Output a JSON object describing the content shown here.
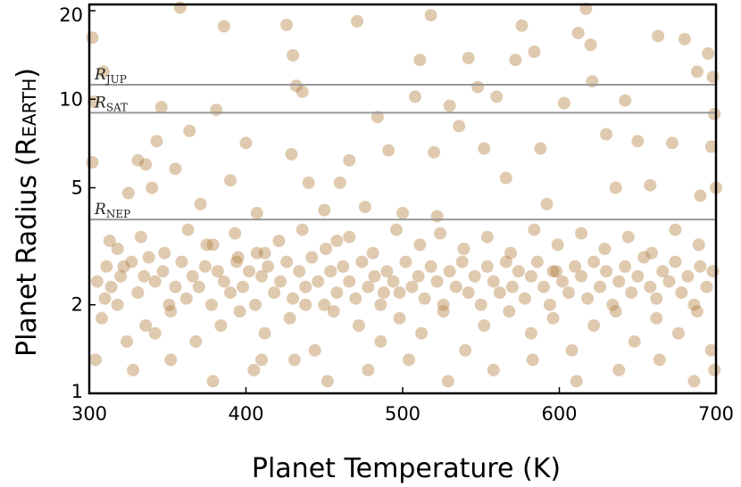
{
  "chart_data": {
    "type": "scatter",
    "xlabel": "Planet Temperature (K)",
    "ylabel": "Planet Radius (R",
    "ylabel_sub": "EARTH",
    "ylabel_end": ")",
    "xlim": [
      300,
      700
    ],
    "ylim": [
      1,
      21
    ],
    "yscale": "log",
    "x_ticks": [
      "300",
      "400",
      "500",
      "600",
      "700"
    ],
    "y_ticks": [
      "1",
      "2",
      "5",
      "10",
      "20"
    ],
    "grid": false,
    "marker_color": "#b07a3a",
    "marker_opacity": 0.4,
    "reference_lines": [
      {
        "label": "R",
        "sub": "JUP",
        "value": 11.2
      },
      {
        "label": "R",
        "sub": "SAT",
        "value": 9.0
      },
      {
        "label": "R",
        "sub": "NEP",
        "value": 3.9
      }
    ],
    "points": [
      [
        302,
        16.2
      ],
      [
        309,
        12.4
      ],
      [
        303,
        9.8
      ],
      [
        302,
        6.1
      ],
      [
        313,
        3.3
      ],
      [
        311,
        2.7
      ],
      [
        304,
        1.3
      ],
      [
        310,
        2.1
      ],
      [
        325,
        4.8
      ],
      [
        331,
        6.2
      ],
      [
        336,
        6.0
      ],
      [
        320,
        2.5
      ],
      [
        343,
        7.2
      ],
      [
        346,
        9.4
      ],
      [
        340,
        5.0
      ],
      [
        355,
        5.8
      ],
      [
        342,
        1.6
      ],
      [
        358,
        20.5
      ],
      [
        364,
        7.8
      ],
      [
        371,
        4.4
      ],
      [
        375,
        3.2
      ],
      [
        381,
        9.2
      ],
      [
        386,
        17.7
      ],
      [
        390,
        5.3
      ],
      [
        395,
        2.9
      ],
      [
        400,
        7.1
      ],
      [
        407,
        4.1
      ],
      [
        410,
        1.3
      ],
      [
        412,
        3.0
      ],
      [
        426,
        17.9
      ],
      [
        430,
        14.1
      ],
      [
        432,
        11.1
      ],
      [
        436,
        10.6
      ],
      [
        429,
        6.5
      ],
      [
        440,
        5.2
      ],
      [
        438,
        2.0
      ],
      [
        450,
        4.2
      ],
      [
        458,
        3.3
      ],
      [
        460,
        5.2
      ],
      [
        466,
        6.2
      ],
      [
        471,
        18.4
      ],
      [
        476,
        4.3
      ],
      [
        484,
        8.7
      ],
      [
        491,
        6.7
      ],
      [
        488,
        2.2
      ],
      [
        500,
        4.1
      ],
      [
        508,
        10.2
      ],
      [
        511,
        13.6
      ],
      [
        518,
        19.3
      ],
      [
        520,
        6.6
      ],
      [
        522,
        4.0
      ],
      [
        530,
        9.5
      ],
      [
        536,
        8.1
      ],
      [
        542,
        13.8
      ],
      [
        548,
        11.0
      ],
      [
        552,
        6.8
      ],
      [
        560,
        10.2
      ],
      [
        566,
        5.4
      ],
      [
        572,
        13.6
      ],
      [
        576,
        17.8
      ],
      [
        584,
        14.5
      ],
      [
        588,
        6.8
      ],
      [
        592,
        4.4
      ],
      [
        596,
        2.6
      ],
      [
        603,
        9.7
      ],
      [
        612,
        16.8
      ],
      [
        617,
        20.3
      ],
      [
        620,
        15.3
      ],
      [
        621,
        11.5
      ],
      [
        630,
        7.6
      ],
      [
        636,
        5.0
      ],
      [
        642,
        9.9
      ],
      [
        650,
        7.2
      ],
      [
        658,
        5.1
      ],
      [
        663,
        16.4
      ],
      [
        672,
        7.1
      ],
      [
        680,
        16.0
      ],
      [
        688,
        12.4
      ],
      [
        695,
        14.3
      ],
      [
        698,
        11.9
      ],
      [
        699,
        8.9
      ],
      [
        697,
        6.9
      ],
      [
        690,
        4.7
      ],
      [
        700,
        5.0
      ],
      [
        305,
        2.4
      ],
      [
        314,
        2.3
      ],
      [
        318,
        2.0
      ],
      [
        322,
        2.7
      ],
      [
        327,
        2.8
      ],
      [
        331,
        2.2
      ],
      [
        335,
        2.5
      ],
      [
        338,
        2.9
      ],
      [
        342,
        2.4
      ],
      [
        347,
        2.6
      ],
      [
        351,
        2.0
      ],
      [
        355,
        2.3
      ],
      [
        359,
        2.8
      ],
      [
        362,
        2.1
      ],
      [
        366,
        2.5
      ],
      [
        370,
        2.3
      ],
      [
        374,
        2.7
      ],
      [
        378,
        2.0
      ],
      [
        382,
        2.6
      ],
      [
        386,
        2.4
      ],
      [
        390,
        2.2
      ],
      [
        394,
        2.8
      ],
      [
        398,
        2.3
      ],
      [
        402,
        2.6
      ],
      [
        406,
        2.0
      ],
      [
        410,
        2.5
      ],
      [
        414,
        2.7
      ],
      [
        418,
        2.2
      ],
      [
        422,
        2.4
      ],
      [
        426,
        2.8
      ],
      [
        430,
        2.1
      ],
      [
        434,
        2.6
      ],
      [
        438,
        2.3
      ],
      [
        442,
        2.9
      ],
      [
        446,
        2.4
      ],
      [
        450,
        2.0
      ],
      [
        454,
        2.6
      ],
      [
        458,
        2.2
      ],
      [
        462,
        2.7
      ],
      [
        466,
        2.4
      ],
      [
        470,
        2.1
      ],
      [
        474,
        2.8
      ],
      [
        478,
        2.3
      ],
      [
        482,
        2.5
      ],
      [
        486,
        2.0
      ],
      [
        490,
        2.6
      ],
      [
        494,
        2.4
      ],
      [
        498,
        2.2
      ],
      [
        502,
        2.8
      ],
      [
        506,
        2.3
      ],
      [
        510,
        2.5
      ],
      [
        514,
        2.1
      ],
      [
        518,
        2.7
      ],
      [
        522,
        2.4
      ],
      [
        526,
        2.0
      ],
      [
        530,
        2.6
      ],
      [
        534,
        2.3
      ],
      [
        538,
        2.8
      ],
      [
        542,
        2.2
      ],
      [
        546,
        2.5
      ],
      [
        550,
        2.0
      ],
      [
        554,
        2.7
      ],
      [
        558,
        2.4
      ],
      [
        562,
        2.2
      ],
      [
        566,
        2.8
      ],
      [
        570,
        2.3
      ],
      [
        574,
        2.6
      ],
      [
        578,
        2.1
      ],
      [
        582,
        2.5
      ],
      [
        586,
        2.8
      ],
      [
        590,
        2.3
      ],
      [
        594,
        2.0
      ],
      [
        598,
        2.6
      ],
      [
        602,
        2.4
      ],
      [
        606,
        2.2
      ],
      [
        610,
        2.7
      ],
      [
        614,
        2.5
      ],
      [
        618,
        2.1
      ],
      [
        622,
        2.8
      ],
      [
        626,
        2.3
      ],
      [
        630,
        2.6
      ],
      [
        634,
        2.0
      ],
      [
        638,
        2.4
      ],
      [
        642,
        2.7
      ],
      [
        646,
        2.2
      ],
      [
        650,
        2.5
      ],
      [
        654,
        2.9
      ],
      [
        658,
        2.3
      ],
      [
        662,
        2.1
      ],
      [
        666,
        2.6
      ],
      [
        670,
        2.4
      ],
      [
        674,
        2.8
      ],
      [
        678,
        2.2
      ],
      [
        682,
        2.5
      ],
      [
        686,
        2.0
      ],
      [
        690,
        2.7
      ],
      [
        694,
        2.3
      ],
      [
        698,
        2.6
      ],
      [
        308,
        1.8
      ],
      [
        324,
        1.5
      ],
      [
        336,
        1.7
      ],
      [
        352,
        1.9
      ],
      [
        368,
        1.5
      ],
      [
        384,
        1.7
      ],
      [
        396,
        1.9
      ],
      [
        412,
        1.6
      ],
      [
        428,
        1.8
      ],
      [
        444,
        1.4
      ],
      [
        456,
        1.9
      ],
      [
        472,
        1.7
      ],
      [
        486,
        1.5
      ],
      [
        498,
        1.8
      ],
      [
        512,
        1.6
      ],
      [
        526,
        1.9
      ],
      [
        540,
        1.4
      ],
      [
        552,
        1.7
      ],
      [
        568,
        1.9
      ],
      [
        582,
        1.6
      ],
      [
        596,
        1.8
      ],
      [
        608,
        1.4
      ],
      [
        622,
        1.7
      ],
      [
        636,
        1.9
      ],
      [
        648,
        1.5
      ],
      [
        662,
        1.8
      ],
      [
        676,
        1.6
      ],
      [
        688,
        1.9
      ],
      [
        697,
        1.4
      ],
      [
        318,
        3.1
      ],
      [
        333,
        3.4
      ],
      [
        348,
        3.0
      ],
      [
        363,
        3.6
      ],
      [
        379,
        3.2
      ],
      [
        393,
        3.5
      ],
      [
        407,
        3.0
      ],
      [
        421,
        3.3
      ],
      [
        436,
        3.6
      ],
      [
        451,
        3.1
      ],
      [
        466,
        3.4
      ],
      [
        481,
        3.0
      ],
      [
        496,
        3.6
      ],
      [
        511,
        3.2
      ],
      [
        524,
        3.5
      ],
      [
        539,
        3.1
      ],
      [
        554,
        3.4
      ],
      [
        569,
        3.0
      ],
      [
        584,
        3.6
      ],
      [
        599,
        3.2
      ],
      [
        614,
        3.5
      ],
      [
        629,
        3.1
      ],
      [
        644,
        3.4
      ],
      [
        659,
        3.0
      ],
      [
        674,
        3.6
      ],
      [
        689,
        3.2
      ],
      [
        328,
        1.2
      ],
      [
        352,
        1.3
      ],
      [
        379,
        1.1
      ],
      [
        405,
        1.2
      ],
      [
        431,
        1.3
      ],
      [
        452,
        1.1
      ],
      [
        478,
        1.2
      ],
      [
        504,
        1.3
      ],
      [
        529,
        1.1
      ],
      [
        558,
        1.2
      ],
      [
        583,
        1.3
      ],
      [
        611,
        1.1
      ],
      [
        638,
        1.2
      ],
      [
        664,
        1.3
      ],
      [
        686,
        1.1
      ],
      [
        699,
        1.2
      ]
    ]
  }
}
